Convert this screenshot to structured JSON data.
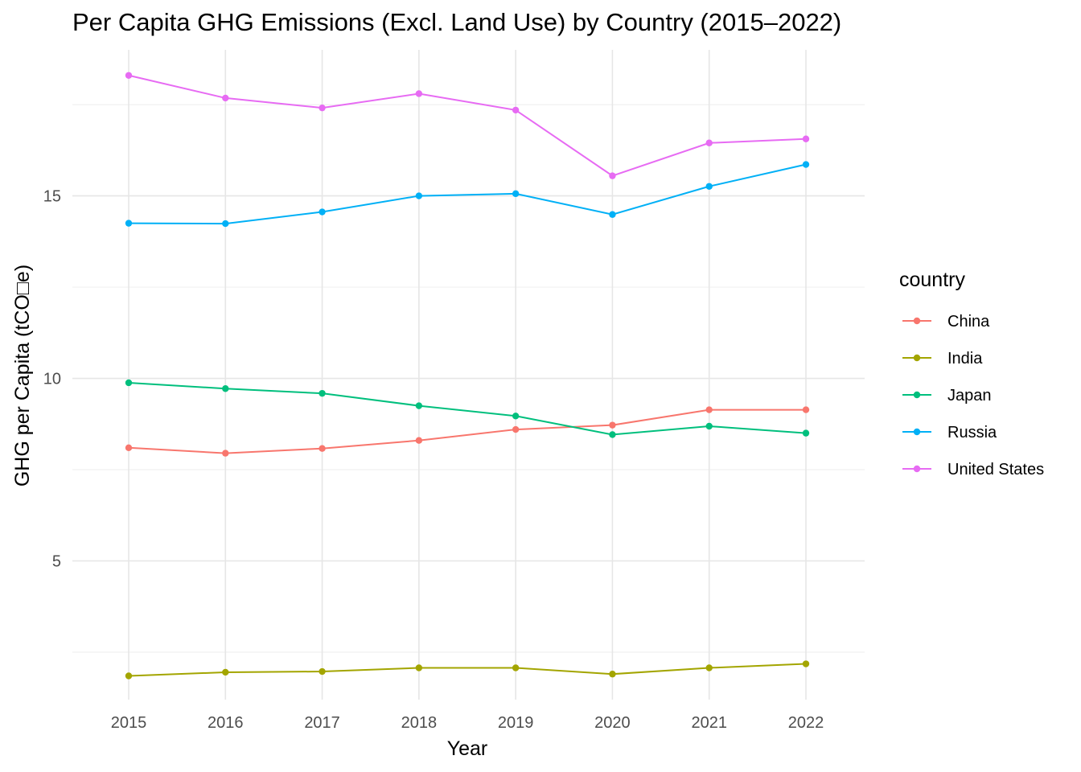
{
  "chart_data": {
    "type": "line",
    "title": "Per Capita GHG Emissions (Excl. Land Use) by Country (2015–2022)",
    "xlabel": "Year",
    "ylabel": "GHG per Capita (tCO□e)",
    "x": [
      2015,
      2016,
      2017,
      2018,
      2019,
      2020,
      2021,
      2022
    ],
    "x_tick_labels": [
      "2015",
      "2016",
      "2017",
      "2018",
      "2019",
      "2020",
      "2021",
      "2022"
    ],
    "y_ticks": [
      5,
      10,
      15
    ],
    "y_tick_labels": [
      "5",
      "10",
      "15"
    ],
    "ylim": [
      1.2,
      19.0
    ],
    "grid": true,
    "legend": {
      "title": "country",
      "position": "right"
    },
    "series": [
      {
        "name": "China",
        "color": "#F8766D",
        "values": [
          8.1,
          7.95,
          8.08,
          8.3,
          8.6,
          8.72,
          9.14,
          9.14
        ]
      },
      {
        "name": "India",
        "color": "#A3A500",
        "values": [
          1.85,
          1.95,
          1.97,
          2.07,
          2.07,
          1.9,
          2.07,
          2.18
        ]
      },
      {
        "name": "Japan",
        "color": "#00BF7D",
        "values": [
          9.88,
          9.72,
          9.59,
          9.25,
          8.97,
          8.46,
          8.69,
          8.5
        ]
      },
      {
        "name": "Russia",
        "color": "#00B0F6",
        "values": [
          14.25,
          14.24,
          14.56,
          15.0,
          15.06,
          14.49,
          15.26,
          15.86
        ]
      },
      {
        "name": "United States",
        "color": "#E76BF3",
        "values": [
          18.3,
          17.68,
          17.41,
          17.8,
          17.35,
          15.55,
          16.45,
          16.56
        ]
      }
    ]
  }
}
